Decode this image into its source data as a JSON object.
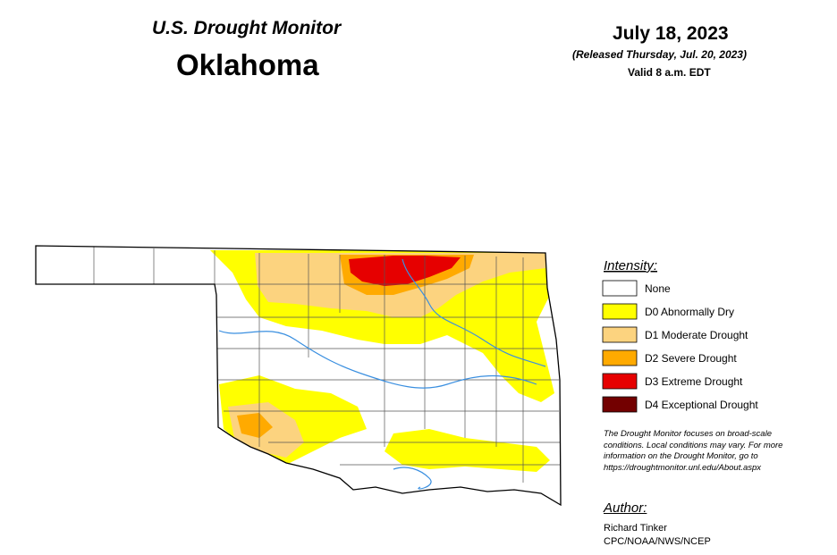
{
  "header": {
    "title": "U.S. Drought Monitor",
    "state": "Oklahoma"
  },
  "date": {
    "main": "July 18, 2023",
    "released": "(Released Thursday, Jul. 20, 2023)",
    "valid": "Valid 8 a.m. EDT"
  },
  "legend": {
    "heading": "Intensity:",
    "items": [
      {
        "label": "None",
        "color": "#ffffff"
      },
      {
        "label": "D0 Abnormally Dry",
        "color": "#ffff00"
      },
      {
        "label": "D1 Moderate Drought",
        "color": "#fcd37f"
      },
      {
        "label": "D2 Severe Drought",
        "color": "#ffaa00"
      },
      {
        "label": "D3 Extreme Drought",
        "color": "#e60000"
      },
      {
        "label": "D4 Exceptional Drought",
        "color": "#730000"
      }
    ]
  },
  "note": [
    "The Drought Monitor focuses on broad-scale",
    "conditions. Local conditions may vary. For more",
    "information on the Drought Monitor, go to",
    "https://droughtmonitor.unl.edu/About.aspx"
  ],
  "author": {
    "heading": "Author:",
    "lines": [
      "Richard Tinker",
      "CPC/NOAA/NWS/NCEP"
    ]
  }
}
